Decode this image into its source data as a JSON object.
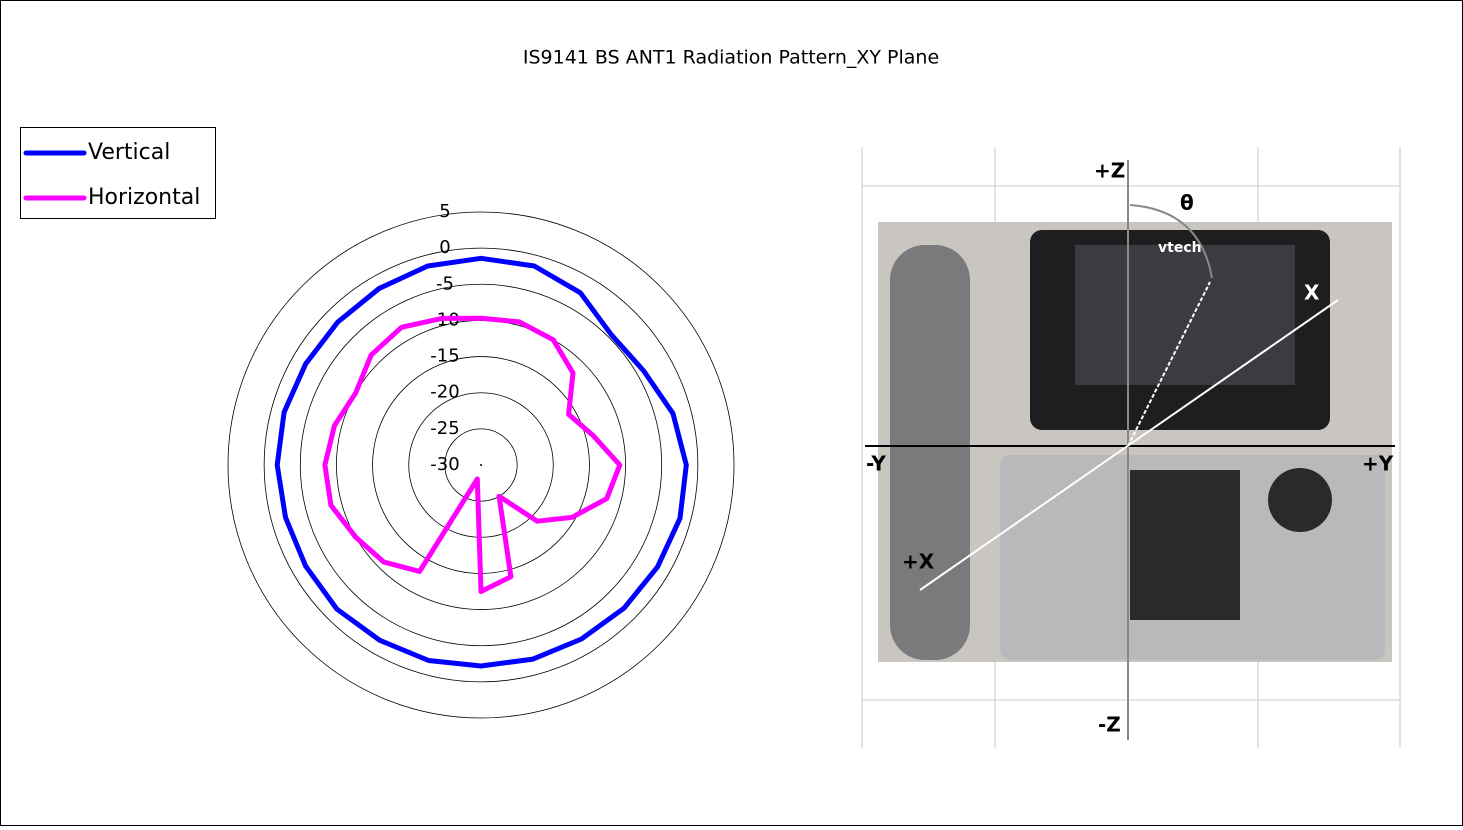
{
  "chart_data": {
    "type": "polar",
    "title": "IS9141 BS ANT1 Radiation Pattern_XY Plane",
    "categories": [
      null,
      null,
      null,
      null,
      null,
      null,
      null,
      null,
      null,
      null,
      null,
      null,
      null,
      null,
      null,
      null,
      null,
      null,
      null,
      null,
      null,
      null,
      null,
      null
    ],
    "series": [
      {
        "name": "Vertical",
        "color": "#0000ff",
        "values": [
          -1.4,
          -1.5,
          -2.5,
          -4.5,
          -4,
          -2.5,
          -1.6,
          -1.5,
          -1.8,
          -2,
          -2.2,
          -2.2,
          -2.2,
          -2,
          -2,
          -1.8,
          -2,
          -2,
          -1.8,
          -1.8,
          -2,
          -2,
          -1.8,
          -1.5
        ]
      },
      {
        "name": "Horizontal",
        "color": "#ff00ff",
        "values": [
          -9.7,
          -9.5,
          -10,
          -12,
          -16,
          -14,
          -10.8,
          -12,
          -15.5,
          -19,
          -25,
          -14,
          -12.5,
          -28,
          -13,
          -11,
          -10,
          -8.5,
          -8.4,
          -9,
          -10,
          -8.5,
          -8,
          -9
        ]
      }
    ],
    "ylim": [
      -30,
      5
    ],
    "yticks": [
      -30,
      -25,
      -20,
      -15,
      -10,
      -5,
      0,
      5
    ],
    "grid": true,
    "legend": "top-left"
  },
  "image": {
    "z_plus": "+Z",
    "z_minus": "-Z",
    "y_plus": "+Y",
    "y_minus": "-Y",
    "x_plus": "+X",
    "x_far": "X",
    "theta": "θ",
    "brand": "vtech"
  }
}
